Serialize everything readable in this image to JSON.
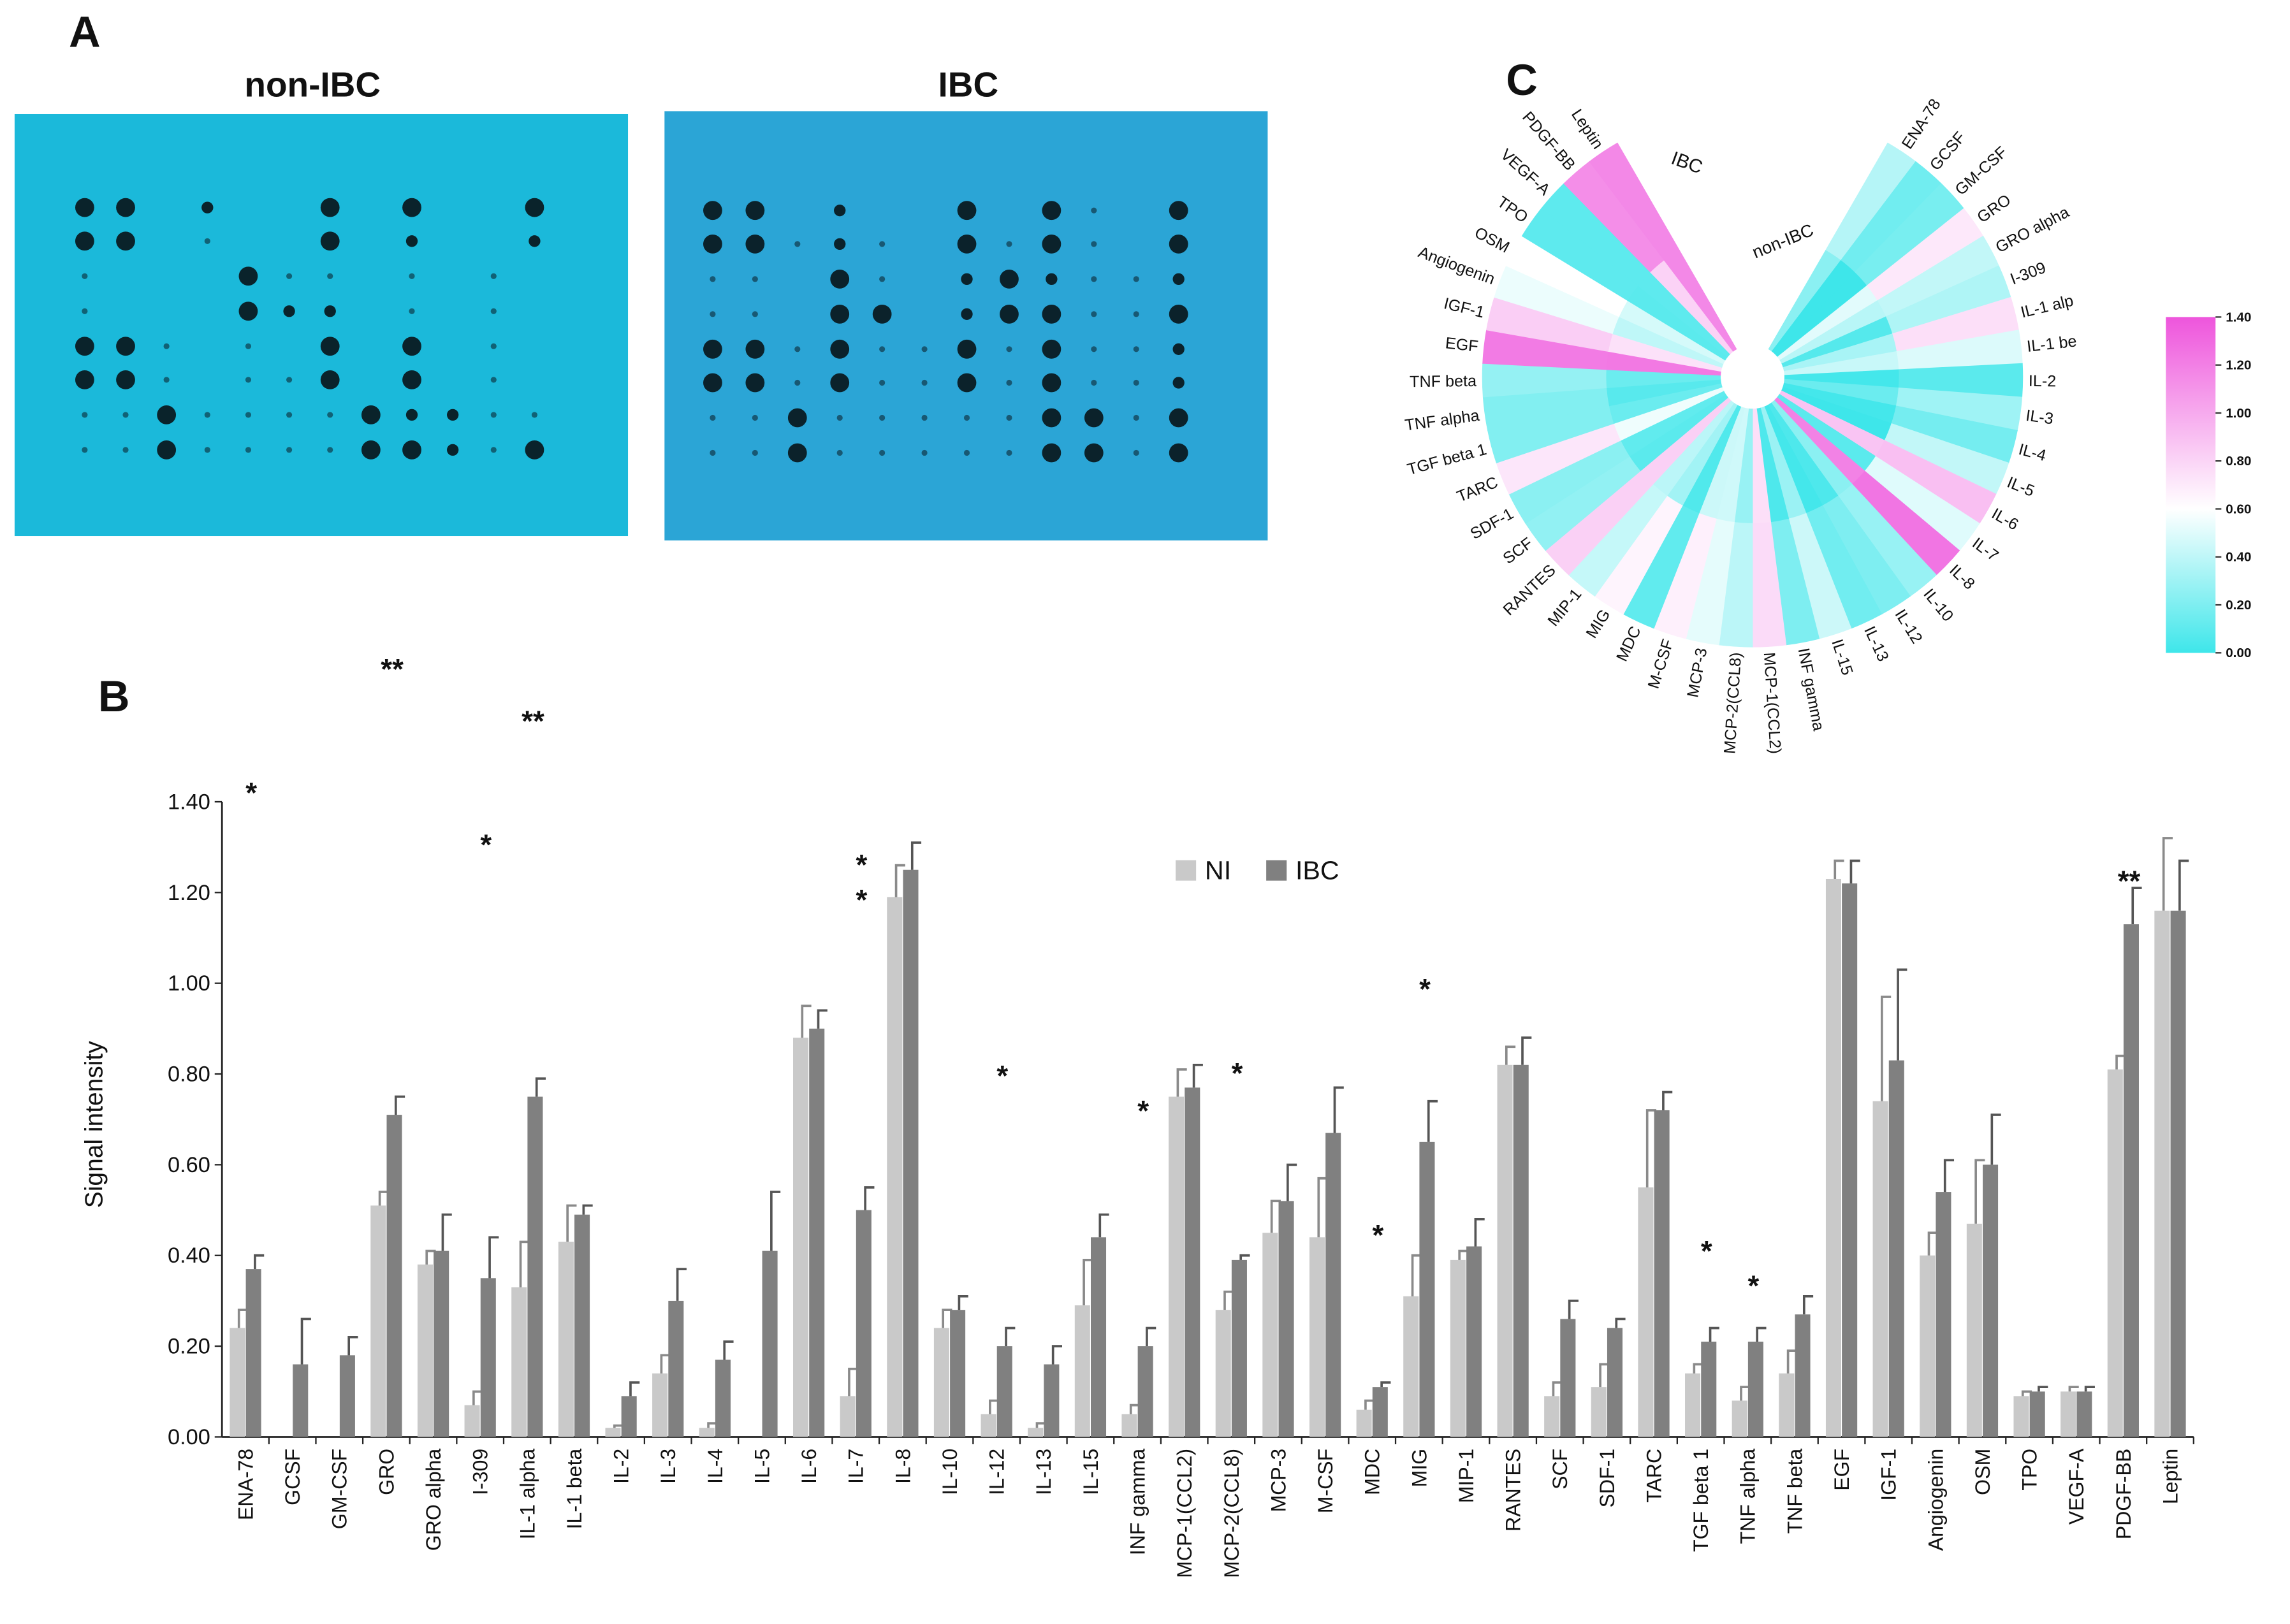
{
  "panel_labels": [
    "A",
    "B",
    "C"
  ],
  "blots": [
    {
      "title": "non-IBC"
    },
    {
      "title": "IBC"
    }
  ],
  "chart_data": [
    {
      "type": "bar",
      "ylabel": "Signal intensity",
      "categories": [
        "ENA-78",
        "GCSF",
        "GM-CSF",
        "GRO",
        "GRO alpha",
        "I-309",
        "IL-1 alpha",
        "IL-1 beta",
        "IL-2",
        "IL-3",
        "IL-4",
        "IL-5",
        "IL-6",
        "IL-7",
        "IL-8",
        "IL-10",
        "IL-12",
        "IL-13",
        "IL-15",
        "INF gamma",
        "MCP-1(CCL2)",
        "MCP-2(CCL8)",
        "MCP-3",
        "M-CSF",
        "MDC",
        "MIG",
        "MIP-1",
        "RANTES",
        "SCF",
        "SDF-1",
        "TARC",
        "TGF beta 1",
        "TNF alpha",
        "TNF beta",
        "EGF",
        "IGF-1",
        "Angiogenin",
        "OSM",
        "TPO",
        "VEGF-A",
        "PDGF-BB",
        "Leptin"
      ],
      "series": [
        {
          "name": "NI",
          "color": "#c9c9c9",
          "values": [
            0.24,
            0,
            0,
            0.51,
            0.38,
            0.07,
            0.33,
            0.43,
            0.02,
            0.14,
            0.02,
            0,
            0.88,
            0.09,
            1.19,
            0.24,
            0.05,
            0.02,
            0.29,
            0.05,
            0.75,
            0.28,
            0.45,
            0.44,
            0.06,
            0.31,
            0.39,
            0.82,
            0.09,
            0.11,
            0.55,
            0.14,
            0.08,
            0.14,
            1.23,
            0.74,
            0.4,
            0.47,
            0.09,
            0.1,
            0.81,
            1.16
          ],
          "errors": [
            0.04,
            0,
            0,
            0.03,
            0.03,
            0.03,
            0.1,
            0.08,
            0.005,
            0.04,
            0.01,
            0,
            0.07,
            0.06,
            0.07,
            0.04,
            0.03,
            0.01,
            0.1,
            0.02,
            0.06,
            0.04,
            0.07,
            0.13,
            0.02,
            0.09,
            0.02,
            0.04,
            0.03,
            0.05,
            0.17,
            0.02,
            0.03,
            0.05,
            0.04,
            0.23,
            0.05,
            0.14,
            0.01,
            0.01,
            0.03,
            0.16
          ]
        },
        {
          "name": "IBC",
          "color": "#808080",
          "values": [
            0.37,
            0.16,
            0.18,
            0.71,
            0.41,
            0.35,
            0.75,
            0.49,
            0.09,
            0.3,
            0.17,
            0.41,
            0.9,
            0.5,
            1.25,
            0.28,
            0.2,
            0.16,
            0.44,
            0.2,
            0.77,
            0.39,
            0.52,
            0.67,
            0.11,
            0.65,
            0.42,
            0.82,
            0.26,
            0.24,
            0.72,
            0.21,
            0.21,
            0.27,
            1.22,
            0.83,
            0.54,
            0.6,
            0.1,
            0.1,
            1.13,
            1.16
          ],
          "errors": [
            0.03,
            0.1,
            0.04,
            0.04,
            0.08,
            0.09,
            0.04,
            0.02,
            0.03,
            0.07,
            0.04,
            0.13,
            0.04,
            0.05,
            0.06,
            0.03,
            0.04,
            0.04,
            0.05,
            0.04,
            0.05,
            0.01,
            0.08,
            0.1,
            0.01,
            0.09,
            0.06,
            0.06,
            0.04,
            0.02,
            0.04,
            0.03,
            0.03,
            0.04,
            0.05,
            0.2,
            0.07,
            0.11,
            0.01,
            0.01,
            0.08,
            0.11
          ]
        }
      ],
      "ylim": [
        0,
        1.4
      ],
      "yticks": [
        {
          "value": 0,
          "label": "0.00"
        },
        {
          "value": 0.2,
          "label": "0.20"
        },
        {
          "value": 0.4,
          "label": "0.40"
        },
        {
          "value": 0.6,
          "label": "0.60"
        },
        {
          "value": 0.8,
          "label": "0.80"
        },
        {
          "value": 1.0,
          "label": "1.00"
        },
        {
          "value": 1.2,
          "label": "1.20"
        },
        {
          "value": 1.4,
          "label": "1.40"
        }
      ],
      "legend": "top",
      "annotations": [
        {
          "index": 0,
          "text": "*"
        },
        {
          "index": 3,
          "text": "**"
        },
        {
          "index": 5,
          "text": "*"
        },
        {
          "index": 6,
          "text": "**"
        },
        {
          "index": 13,
          "text": "*"
        },
        {
          "index": 13,
          "text": "*"
        },
        {
          "index": 16,
          "text": "*"
        },
        {
          "index": 19,
          "text": "*"
        },
        {
          "index": 21,
          "text": "*"
        },
        {
          "index": 24,
          "text": "*"
        },
        {
          "index": 25,
          "text": "*"
        },
        {
          "index": 31,
          "text": "*"
        },
        {
          "index": 32,
          "text": "*"
        },
        {
          "index": 40,
          "text": "**"
        }
      ]
    },
    {
      "type": "radial_heatmap",
      "categories": [
        "ENA-78",
        "GCSF",
        "GM-CSF",
        "GRO",
        "GRO alpha",
        "I-309",
        "IL-1 alp",
        "IL-1 be",
        "IL-2",
        "IL-3",
        "IL-4",
        "IL-5",
        "IL-6",
        "IL-7",
        "IL-8",
        "IL-10",
        "IL-12",
        "IL-13",
        "IL-15",
        "INF gamma",
        "MCP-1(CCL2)",
        "MCP-2(CCL8)",
        "MCP-3",
        "M-CSF",
        "MDC",
        "MIG",
        "MIP-1",
        "RANTES",
        "SCF",
        "SDF-1",
        "TARC",
        "TGF beta 1",
        "TNF alpha",
        "TNF beta",
        "EGF",
        "IGF-1",
        "Angiogenin",
        "OSM",
        "TPO",
        "VEGF-A",
        "PDGF-BB",
        "Leptin"
      ],
      "rings": [
        "IBC",
        "non-IBC"
      ],
      "colorbar": {
        "lim": [
          0,
          1.4
        ],
        "ticks": [
          {
            "value": 0,
            "label": "0.00"
          },
          {
            "value": 0.2,
            "label": "0.20"
          },
          {
            "value": 0.4,
            "label": "0.40"
          },
          {
            "value": 0.6,
            "label": "0.60"
          },
          {
            "value": 0.8,
            "label": "0.80"
          },
          {
            "value": 1.0,
            "label": "1.00"
          },
          {
            "value": 1.2,
            "label": "1.20"
          },
          {
            "value": 1.4,
            "label": "1.40"
          }
        ],
        "colormap": [
          {
            "value": 0,
            "color": "#3ee6ea"
          },
          {
            "value": 0.6,
            "color": "#ffffff"
          },
          {
            "value": 1.4,
            "color": "#ee55dc"
          }
        ]
      }
    }
  ]
}
